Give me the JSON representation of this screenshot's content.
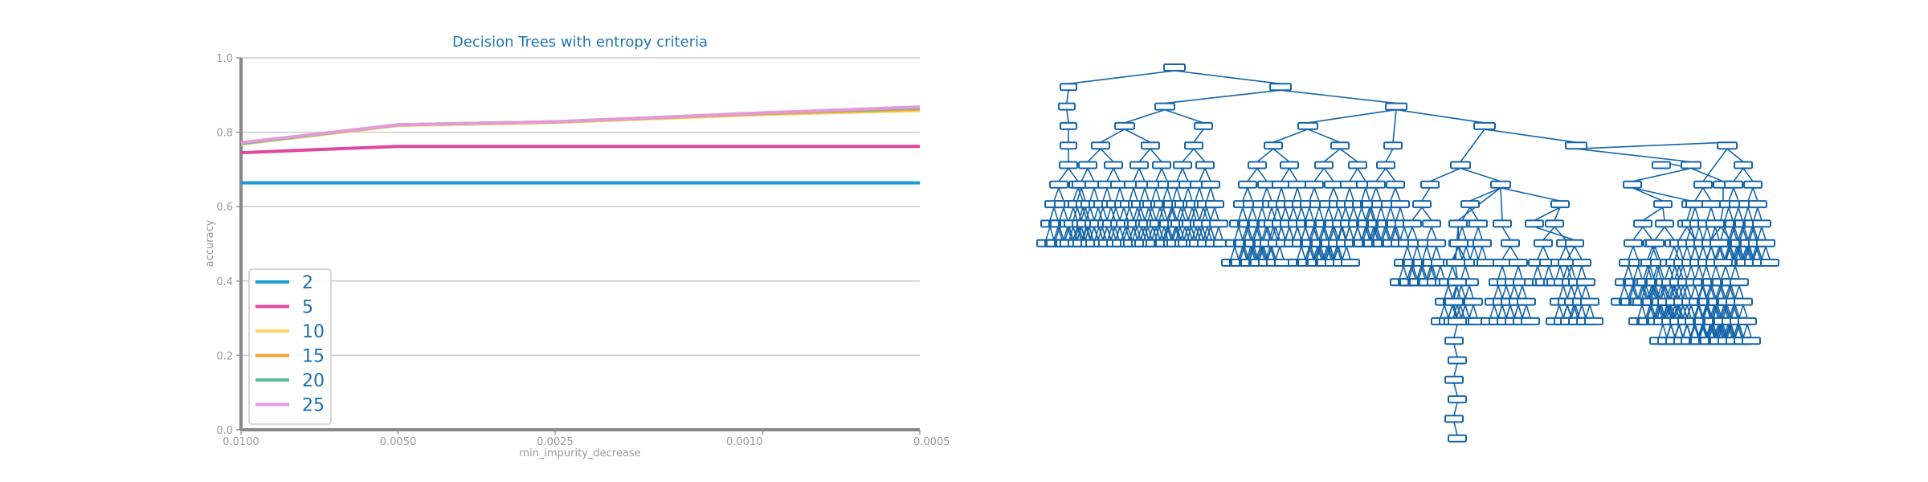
{
  "chart_data": {
    "type": "line",
    "title": "Decision Trees with entropy criteria",
    "xlabel": "min_impurity_decrease",
    "ylabel": "accuracy",
    "ylim": [
      0.0,
      1.0
    ],
    "y_ticks": [
      "0.0",
      "0.2",
      "0.4",
      "0.6",
      "0.8",
      "1.0"
    ],
    "categories": [
      "0.0100",
      "0.0050",
      "0.0025",
      "0.0010",
      "0.0005"
    ],
    "x": [
      0.01,
      0.005,
      0.0025,
      0.001,
      0.0005
    ],
    "grid": true,
    "legend_position": "lower-left",
    "series": [
      {
        "name": "2",
        "color": "#1a9ad6",
        "values": [
          0.664,
          0.664,
          0.664,
          0.664,
          0.664
        ]
      },
      {
        "name": "5",
        "color": "#e0479e",
        "values": [
          0.745,
          0.762,
          0.762,
          0.762,
          0.762
        ]
      },
      {
        "name": "10",
        "color": "#f6d66b",
        "values": [
          0.768,
          0.818,
          0.826,
          0.848,
          0.858
        ]
      },
      {
        "name": "15",
        "color": "#f0a43a",
        "values": [
          0.77,
          0.82,
          0.828,
          0.85,
          0.862
        ]
      },
      {
        "name": "20",
        "color": "#5bb89a",
        "values": [
          0.77,
          0.82,
          0.828,
          0.852,
          0.866
        ]
      },
      {
        "name": "25",
        "color": "#e49ad8",
        "values": [
          0.772,
          0.82,
          0.828,
          0.852,
          0.868
        ]
      }
    ]
  },
  "tree_panel": {
    "description_name": "decision-tree-visualization"
  }
}
